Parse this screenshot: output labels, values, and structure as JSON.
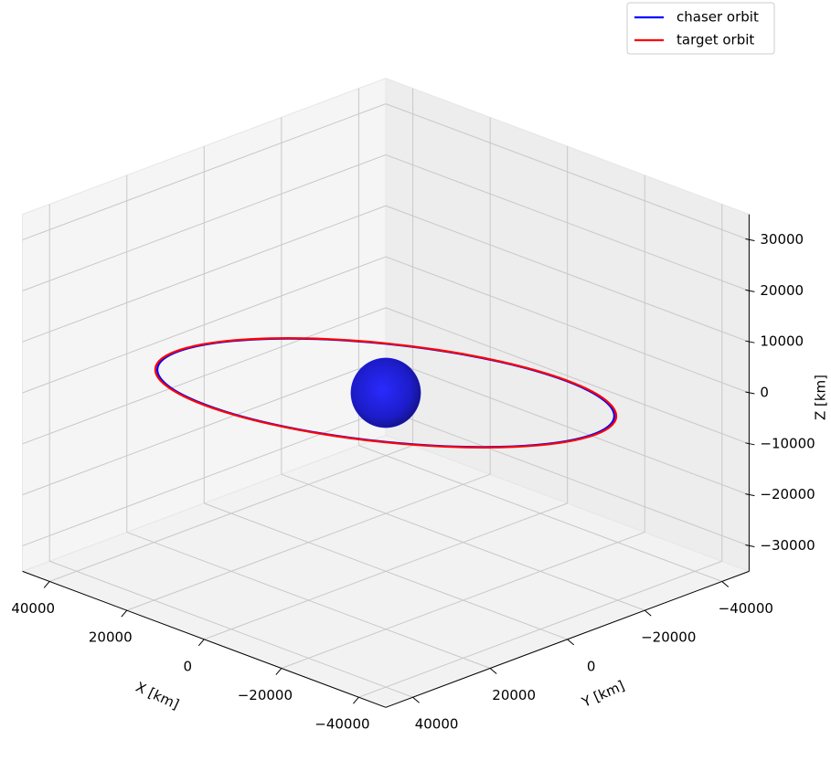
{
  "chart_data": {
    "type": "line3d",
    "xlabel": "X [km]",
    "ylabel": "Y [km]",
    "zlabel": "Z [km]",
    "xlim": [
      -47000,
      47000
    ],
    "ylim": [
      -47000,
      47000
    ],
    "zlim": [
      -35000,
      35000
    ],
    "xticks": [
      {
        "value": -40000,
        "label": "−40000"
      },
      {
        "value": -20000,
        "label": "−20000"
      },
      0,
      20000,
      40000
    ],
    "yticks": [
      {
        "value": -40000,
        "label": "−40000"
      },
      {
        "value": -20000,
        "label": "−20000"
      },
      0,
      20000,
      40000
    ],
    "zticks": [
      {
        "value": -30000,
        "label": "−30000"
      },
      {
        "value": -20000,
        "label": "−20000"
      },
      {
        "value": -10000,
        "label": "−10000"
      },
      0,
      10000,
      20000,
      30000
    ],
    "grid": true,
    "legend": "upper right",
    "sphere": {
      "radius": 6378,
      "color": "#1a1aff"
    },
    "series": [
      {
        "name": "chaser orbit",
        "color": "#0000ff",
        "x": [
          41800,
          40375,
          36199,
          29557,
          20900,
          10818,
          0,
          -10818,
          -20900,
          -29557,
          -36199,
          -40375,
          -41800,
          -40375,
          -36199,
          -29557,
          -20900,
          -10818,
          0,
          10818,
          20900,
          29557,
          36199,
          40375
        ],
        "y": [
          0,
          10818,
          20900,
          29557,
          36199,
          40375,
          41800,
          40375,
          36199,
          29557,
          20900,
          10818,
          0,
          -10818,
          -20900,
          -29557,
          -36199,
          -40375,
          -41800,
          -40375,
          -36199,
          -29557,
          -20900,
          -10818
        ],
        "z": [
          -1865,
          335,
          2511,
          4516,
          6214,
          7487,
          8251,
          8452,
          8078,
          7153,
          5741,
          3936,
          1865,
          -335,
          -2511,
          -4516,
          -6214,
          -7487,
          -8251,
          -8452,
          -8078,
          -7153,
          -5741,
          -3936
        ]
      },
      {
        "name": "target orbit",
        "color": "#ff0000",
        "x": [
          42164,
          40726,
          36515,
          29814,
          21082,
          10912,
          0,
          -10912,
          -21082,
          -29814,
          -36515,
          -40726,
          -42164,
          -40726,
          -36515,
          -29814,
          -21082,
          -10912,
          0,
          10912,
          21082,
          29814,
          36515,
          40726
        ],
        "y": [
          0,
          10912,
          21082,
          29814,
          36515,
          40726,
          42164,
          40726,
          36515,
          29814,
          21082,
          10912,
          0,
          -10912,
          -21082,
          -29814,
          -36515,
          -40726,
          -42164,
          -40726,
          -36515,
          -29814,
          -21082,
          -10912
        ],
        "z": [
          -1881,
          338,
          2533,
          4555,
          6268,
          7552,
          8323,
          8526,
          8148,
          7215,
          5791,
          3970,
          1881,
          -338,
          -2533,
          -4555,
          -6268,
          -7552,
          -8323,
          -8526,
          -8148,
          -7215,
          -5791,
          -3970
        ]
      }
    ]
  }
}
